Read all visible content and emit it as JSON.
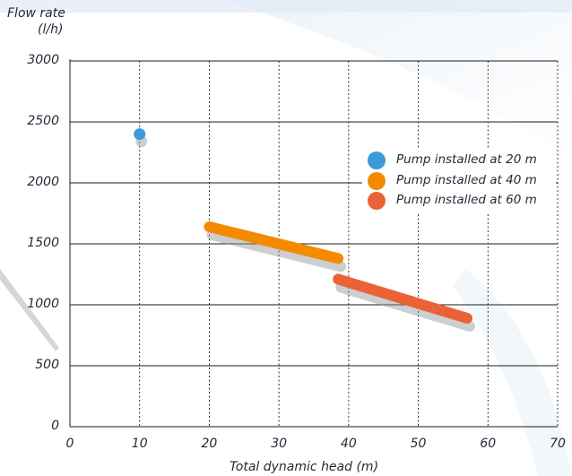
{
  "chart_data": {
    "type": "line",
    "title": "",
    "ylabel_line1": "Flow rate",
    "ylabel_line2": "(l/h)",
    "xlabel": "Total dynamic head (m)",
    "xlim": [
      0,
      70
    ],
    "ylim": [
      0,
      3000
    ],
    "x_ticks": [
      {
        "v": 0,
        "t": "0"
      },
      {
        "v": 10,
        "t": "10"
      },
      {
        "v": 20,
        "t": "20"
      },
      {
        "v": 30,
        "t": "30"
      },
      {
        "v": 40,
        "t": "40"
      },
      {
        "v": 50,
        "t": "50"
      },
      {
        "v": 60,
        "t": "60"
      },
      {
        "v": 70,
        "t": "70"
      }
    ],
    "y_ticks": [
      {
        "v": 0,
        "t": "0"
      },
      {
        "v": 500,
        "t": "500"
      },
      {
        "v": 1000,
        "t": "1000"
      },
      {
        "v": 1500,
        "t": "1500"
      },
      {
        "v": 2000,
        "t": "2000"
      },
      {
        "v": 2500,
        "t": "2500"
      },
      {
        "v": 3000,
        "t": "3000"
      }
    ],
    "grid": {
      "horizontal": "solid",
      "vertical": "dotted"
    },
    "legend_placement": "right",
    "series": [
      {
        "name": "Pump installed at 20 m",
        "color": "#3d9ad6",
        "points": [
          [
            10,
            2400
          ]
        ]
      },
      {
        "name": "Pump installed at 40 m",
        "color": "#f38a00",
        "points": [
          [
            20,
            1640
          ],
          [
            38.5,
            1380
          ]
        ]
      },
      {
        "name": "Pump installed at 60 m",
        "color": "#ea6235",
        "points": [
          [
            38.5,
            1210
          ],
          [
            57,
            890
          ]
        ]
      }
    ]
  }
}
